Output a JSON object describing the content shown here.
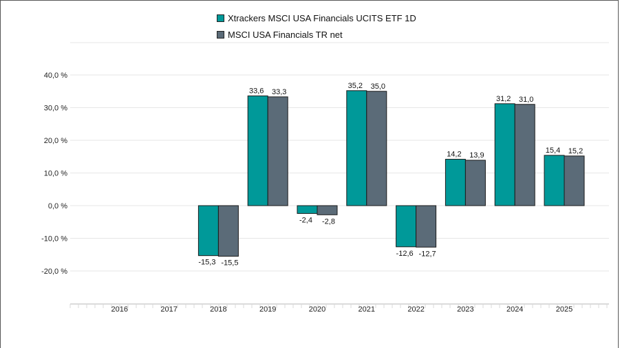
{
  "chart_data": {
    "type": "bar",
    "categories": [
      "2016",
      "2017",
      "2018",
      "2019",
      "2020",
      "2021",
      "2022",
      "2023",
      "2024",
      "2025"
    ],
    "series": [
      {
        "name": "Xtrackers MSCI USA Financials UCITS ETF 1D",
        "color": "#009999",
        "values": [
          null,
          null,
          -15.3,
          33.6,
          -2.4,
          35.2,
          -12.6,
          14.2,
          31.2,
          15.4
        ],
        "labels": [
          "",
          "",
          "-15,3",
          "33,6",
          "-2,4",
          "35,2",
          "-12,6",
          "14,2",
          "31,2",
          "15,4"
        ]
      },
      {
        "name": "MSCI USA Financials TR net",
        "color": "#5b6b78",
        "values": [
          null,
          null,
          -15.5,
          33.3,
          -2.8,
          35.0,
          -12.7,
          13.9,
          31.0,
          15.2
        ],
        "labels": [
          "",
          "",
          "-15,5",
          "33,3",
          "-2,8",
          "35,0",
          "-12,7",
          "13,9",
          "31,0",
          "15,2"
        ]
      }
    ],
    "y_ticks": [
      40,
      30,
      20,
      10,
      0,
      -10,
      -20
    ],
    "y_tick_labels": [
      "40,0 %",
      "30,0 %",
      "20,0 %",
      "10,0 %",
      "0,0 %",
      "-10,0 %",
      "-20,0 %"
    ],
    "ylim": [
      -30,
      50
    ],
    "grid": true,
    "legend_position": "top-center",
    "title": "",
    "xlabel": "",
    "ylabel": ""
  }
}
